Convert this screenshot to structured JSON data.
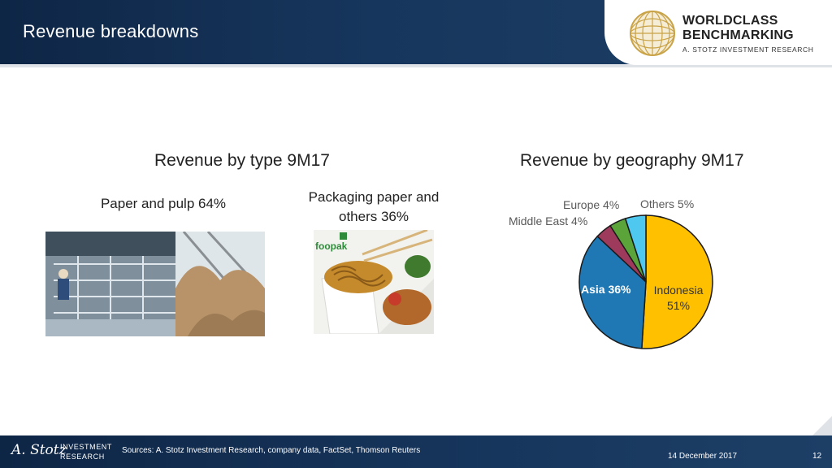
{
  "header": {
    "title": "Revenue breakdowns",
    "logo": {
      "line1": "WORLDCLASS",
      "line2": "BENCHMARKING",
      "tagline": "A. STOTZ INVESTMENT RESEARCH"
    }
  },
  "type_section": {
    "title": "Revenue by type 9M17",
    "paper_label": "Paper and pulp 64%",
    "packaging_label_line1": "Packaging paper and",
    "packaging_label_line2": "others 36%",
    "brand_logo_text": "foopak"
  },
  "geo_section": {
    "title": "Revenue by geography 9M17"
  },
  "chart_data": {
    "type": "pie",
    "title": "Revenue by geography 9M17",
    "slices": [
      {
        "label": "Indonesia",
        "value": 51,
        "value_label": "51%",
        "color": "#ffc000"
      },
      {
        "label": "Asia",
        "value": 36,
        "value_label": "Asia 36%",
        "color": "#1f77b4"
      },
      {
        "label": "Middle East",
        "value": 4,
        "value_label": "Middle East 4%",
        "color": "#9e3a5c"
      },
      {
        "label": "Europe",
        "value": 4,
        "value_label": "Europe 4%",
        "color": "#5aa43a"
      },
      {
        "label": "Others",
        "value": 5,
        "value_label": "Others 5%",
        "color": "#4fc8f0"
      }
    ]
  },
  "footer": {
    "signature": "A. Stotz",
    "brand_line1": "INVESTMENT",
    "brand_line2": "RESEARCH",
    "sources": "Sources: A. Stotz Investment Research, company data, FactSet, Thomson Reuters",
    "date": "14 December 2017",
    "page": "12"
  },
  "colors": {
    "header_bg": "#17365d",
    "footer_bg": "#17365d",
    "gold": "#c9a347"
  }
}
